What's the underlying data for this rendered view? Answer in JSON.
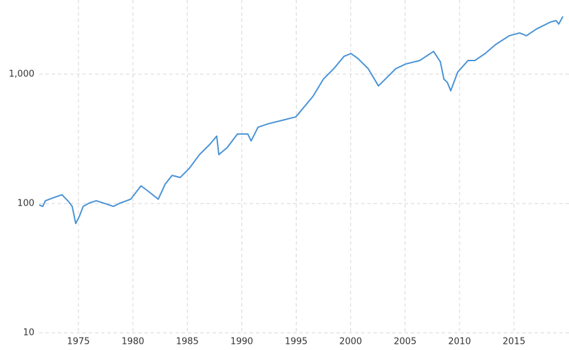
{
  "chart_data": {
    "type": "line",
    "log_scale": true,
    "grid": true,
    "x": [
      1971.4,
      1971.72,
      1971.97,
      1972.85,
      1973.49,
      1974.12,
      1974.43,
      1974.75,
      1975.07,
      1975.44,
      1976.01,
      1976.64,
      1977.59,
      1978.22,
      1978.86,
      1979.8,
      1980.75,
      1981.38,
      1982.33,
      1982.96,
      1983.6,
      1984.35,
      1985.18,
      1986.12,
      1987.07,
      1987.7,
      1987.89,
      1988.65,
      1989.6,
      1990.55,
      1990.86,
      1991.49,
      1992.44,
      1993.71,
      1994.97,
      1995.6,
      1996.55,
      1997.5,
      1998.45,
      1999.39,
      2000.03,
      2000.66,
      2001.61,
      2002.55,
      2003.19,
      2004.14,
      2005.08,
      2006.35,
      2007.61,
      2008.24,
      2008.56,
      2008.88,
      2009.19,
      2009.83,
      2010.78,
      2011.41,
      2012.35,
      2013.3,
      2014.57,
      2015.51,
      2016.14,
      2017.09,
      2018.36,
      2018.86,
      2019.11,
      2019.49
    ],
    "series": [
      {
        "color": "#4a93d6",
        "values": [
          97.5,
          95,
          105,
          112,
          117,
          103,
          95,
          70,
          79,
          95,
          101,
          105,
          99,
          95,
          101,
          108,
          137,
          125,
          108,
          141,
          165,
          159,
          187,
          239,
          287,
          332,
          239,
          270,
          345,
          345,
          305,
          389,
          414,
          440,
          468,
          542,
          676,
          918,
          1104,
          1375,
          1445,
          1325,
          1104,
          812,
          918,
          1104,
          1202,
          1277,
          1500,
          1247,
          918,
          863,
          745,
          1038,
          1277,
          1277,
          1445,
          1694,
          1985,
          2085,
          1985,
          2244,
          2535,
          2600,
          2444,
          2800
        ]
      }
    ],
    "xlim": [
      1971.4,
      2020.05
    ],
    "xticks": [
      1975,
      1980,
      1985,
      1990,
      1995,
      2000,
      2005,
      2010,
      2015
    ],
    "ylim": [
      10,
      3750
    ],
    "yticks": [
      10,
      100,
      {
        "value": 1000,
        "label": "1,000"
      }
    ]
  }
}
